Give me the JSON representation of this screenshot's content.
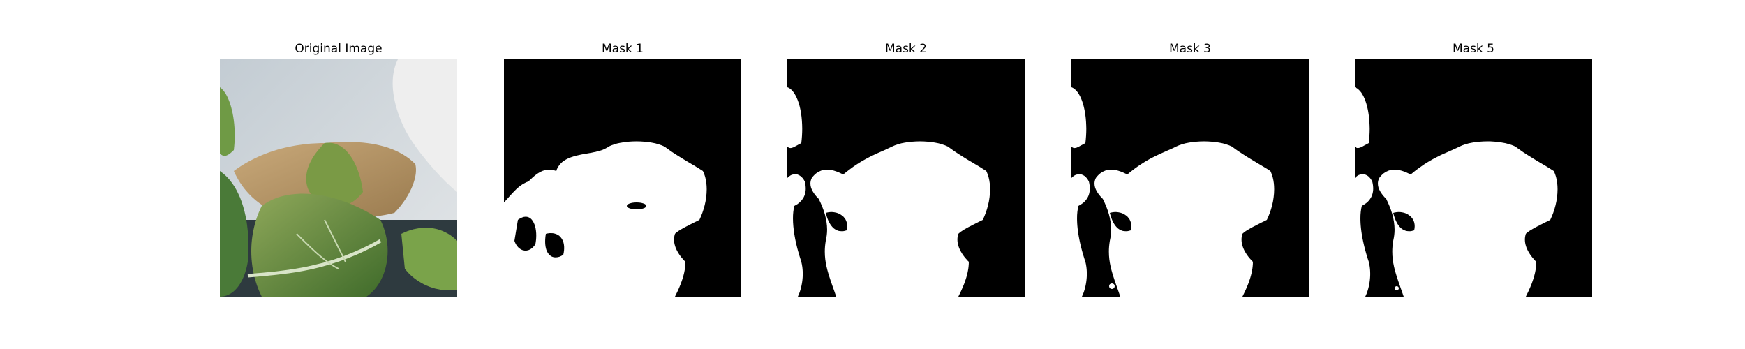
{
  "figure": {
    "panels": [
      {
        "title": "Original Image",
        "kind": "photo"
      },
      {
        "title": "Mask 1",
        "kind": "mask"
      },
      {
        "title": "Mask 2",
        "kind": "mask"
      },
      {
        "title": "Mask 3",
        "kind": "mask"
      },
      {
        "title": "Mask 5",
        "kind": "mask"
      }
    ]
  },
  "colors": {
    "mask_background": "#000000",
    "mask_foreground": "#ffffff",
    "wall": "#c9d2d8",
    "leaf_green": "#5f7f3a",
    "leaf_dry": "#b89a6a"
  }
}
